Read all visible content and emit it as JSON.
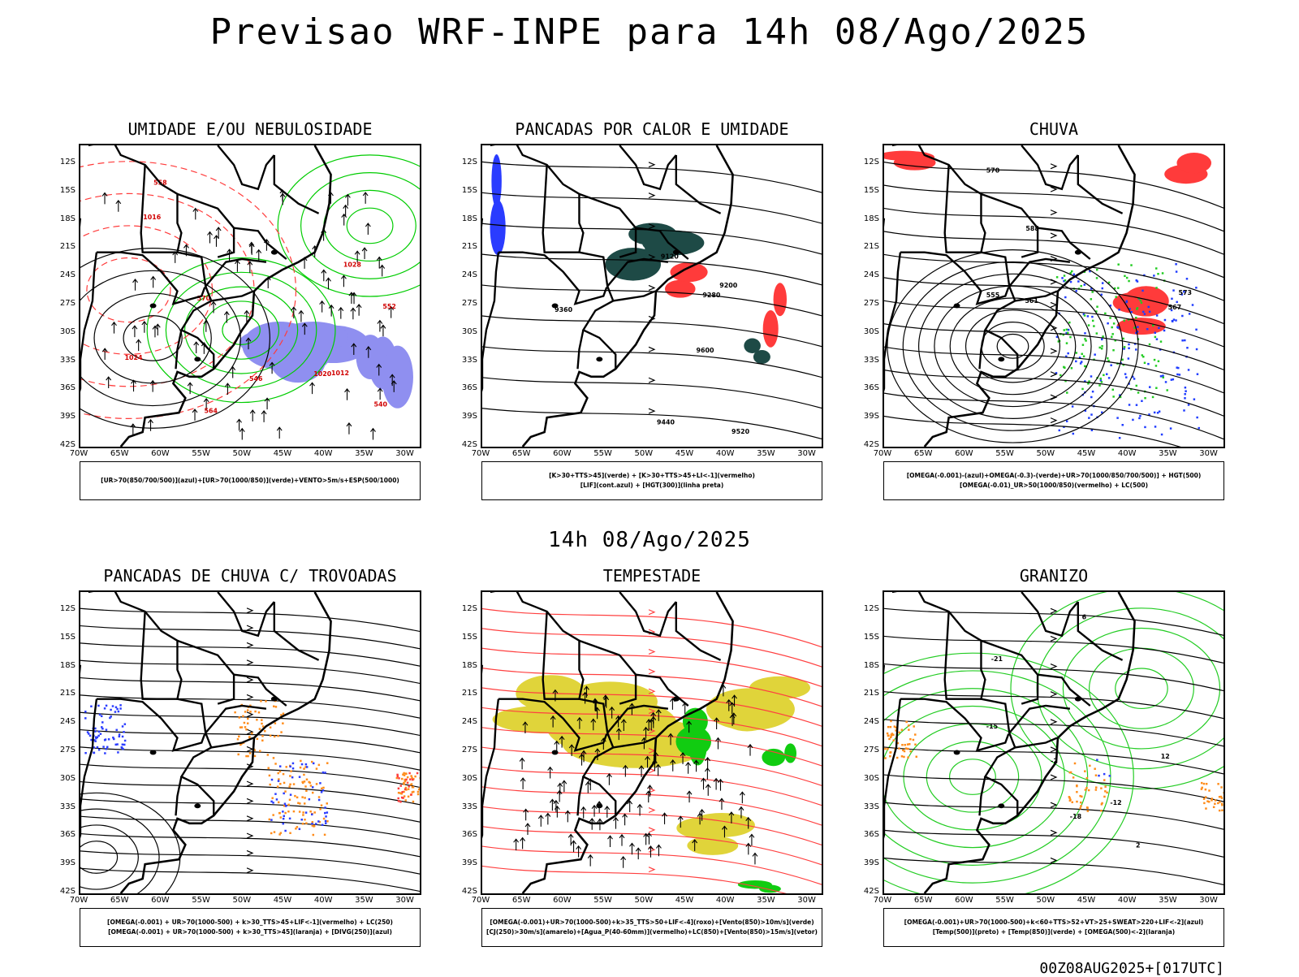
{
  "header": {
    "title": "Previsao WRF-INPE  para 14h 08/Ago/2025",
    "mid_time": "14h 08/Ago/2025",
    "run_id": "00Z08AUG2025+[017UTC]"
  },
  "axes": {
    "lat_labels": [
      "12S",
      "15S",
      "18S",
      "21S",
      "24S",
      "27S",
      "30S",
      "33S",
      "36S",
      "39S",
      "42S"
    ],
    "lon_labels": [
      "70W",
      "65W",
      "60W",
      "55W",
      "50W",
      "45W",
      "40W",
      "35W",
      "30W"
    ]
  },
  "panels": [
    {
      "id": "umidade",
      "title": "UMIDADE E/OU NEBULOSIDADE",
      "legend": [
        "[UR>70(850/700/500)](azul)+[UR>70(1000/850)](verde)+VENTO>5m/s+ESP(500/1000)"
      ],
      "colors": {
        "azul": "#8f8ff0",
        "verde": "#00cc00",
        "vermelho": "#ff3b3b"
      }
    },
    {
      "id": "pancadas-calor",
      "title": "PANCADAS POR CALOR E UMIDADE",
      "legend": [
        "[K>30+TTS>45](verde) + [K>30+TTS>45+LI<-1](vermelho)",
        "[LIF](cont.azul) + [HGT(300)](linha preta)"
      ],
      "colors": {
        "verde": "#1e4a46",
        "vermelho": "#ff3b3b",
        "azul": "#2a3cff"
      }
    },
    {
      "id": "chuva",
      "title": "CHUVA",
      "legend": [
        "[OMEGA(-0.001)-(azul)+OMEGA(-0.3)-(verde)+UR>70(1000/850/700/500)] + HGT(500)",
        "[OMEGA(-0.01)_UR>50(1000/850)(vermelho) + LC(500)"
      ],
      "colors": {
        "azul": "#1f3cff",
        "verde": "#22cc22",
        "vermelho": "#ff3b3b"
      }
    },
    {
      "id": "trovoadas",
      "title": "PANCADAS DE CHUVA C/ TROVOADAS",
      "legend": [
        "[OMEGA(-0.001) + UR>70(1000-500) + k>30_TTS>45+LIF<-1](vermelho) + LC(250)",
        "[OMEGA(-0.001) + UR>70(1000-500) + k>30_TTS>45](laranja) + [DIVG(250)](azul)"
      ],
      "colors": {
        "azul": "#2a3cff",
        "laranja": "#ff8c1a",
        "vermelho": "#ff3b3b"
      }
    },
    {
      "id": "tempestade",
      "title": "TEMPESTADE",
      "legend": [
        "[OMEGA(-0.001)+UR>70(1000-500)+k>35_TTS>50+LIF<-4](roxo)+[Vento(850)>10m/s](verde)",
        "[CJ(250)>30m/s](amarelo)+[Agua_P(40-60mm)](vermelho)+LC(850)+[Vento(850)>15m/s](vetor)"
      ],
      "colors": {
        "amarelo": "#e0d43a",
        "verde": "#11cc11",
        "vermelho": "#ff4040"
      }
    },
    {
      "id": "granizo",
      "title": "GRANIZO",
      "legend": [
        "[OMEGA(-0.001)+UR>70(1000-500)+k<60+TTS>52+VT>25+SWEAT>220+LIF<-2](azul)",
        "[Temp(500)](preto) + [Temp(850)](verde) + [OMEGA(500)<-2](laranja)"
      ],
      "colors": {
        "verde": "#22cc22",
        "laranja": "#ff8c1a",
        "azul": "#2a3cff"
      }
    }
  ],
  "map_labels": {
    "umidade": [
      "1012",
      "1016",
      "1020",
      "1024",
      "1028",
      "570",
      "558",
      "546",
      "552",
      "540",
      "564"
    ],
    "pancadas-calor": [
      "9600",
      "9520",
      "9440",
      "9360",
      "9280",
      "9200",
      "9120"
    ],
    "chuva": [
      "573",
      "570",
      "567",
      "561",
      "555",
      "588"
    ],
    "granizo": [
      "-12",
      "-15",
      "-18",
      "-21",
      "-2",
      "2",
      "6",
      "12"
    ]
  }
}
